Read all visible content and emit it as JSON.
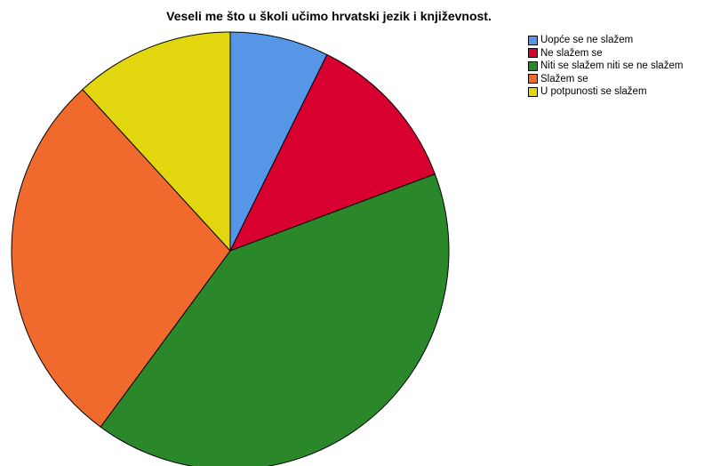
{
  "chart_data": {
    "type": "pie",
    "title": "Veseli me što u školi učimo hrvatski jezik i književnost.",
    "legend_position": "top-right",
    "start_angle": "12 o'clock",
    "direction": "clockwise",
    "slices": [
      {
        "label": "Uopće se ne slažem",
        "value": 7.3,
        "color": "#5596E6"
      },
      {
        "label": "Ne slažem se",
        "value": 12.0,
        "color": "#D7002F"
      },
      {
        "label": "Niti se slažem niti se ne slažem",
        "value": 40.8,
        "color": "#2A882A"
      },
      {
        "label": "Slažem se",
        "value": 28.1,
        "color": "#F06A2D"
      },
      {
        "label": "U potpunosti se slažem",
        "value": 11.8,
        "color": "#E2D70E"
      }
    ]
  }
}
